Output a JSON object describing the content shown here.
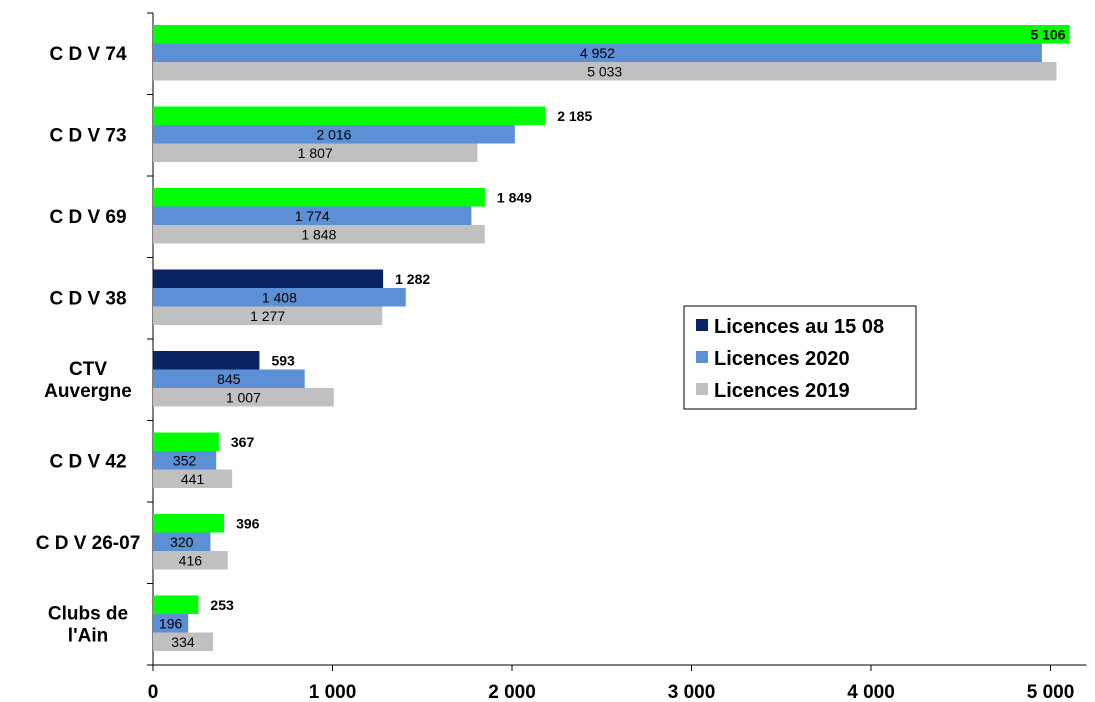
{
  "chart_data": {
    "type": "bar",
    "orientation": "horizontal",
    "categories": [
      [
        "C D V 74"
      ],
      [
        "C D V 73"
      ],
      [
        "C D V 69"
      ],
      [
        "C D V 38"
      ],
      [
        "CTV",
        "Auvergne"
      ],
      [
        "C D V 42"
      ],
      [
        "C D V 26-07"
      ],
      [
        "Clubs de",
        "l'Ain"
      ]
    ],
    "series": [
      {
        "name": "Licences au 15 08",
        "color": "#0a2463",
        "bar_colors": [
          "#00ff00",
          "#00ff00",
          "#00ff00",
          "#0a2463",
          "#0a2463",
          "#00ff00",
          "#00ff00",
          "#00ff00"
        ],
        "values": [
          5106,
          2185,
          1849,
          1282,
          593,
          367,
          396,
          253
        ],
        "labels": [
          "5 106",
          "2 185",
          "1 849",
          "1 282",
          "593",
          "367",
          "396",
          "253"
        ]
      },
      {
        "name": "Licences 2020",
        "color": "#5b8fd6",
        "values": [
          4952,
          2016,
          1774,
          1408,
          845,
          352,
          320,
          196
        ],
        "labels": [
          "4 952",
          "2 016",
          "1 774",
          "1 408",
          "845",
          "352",
          "320",
          "196"
        ]
      },
      {
        "name": "Licences 2019",
        "color": "#c0c0c0",
        "values": [
          5033,
          1807,
          1848,
          1277,
          1007,
          441,
          416,
          334
        ],
        "labels": [
          "5 033",
          "1 807",
          "1 848",
          "1 277",
          "1 007",
          "441",
          "416",
          "334"
        ]
      }
    ],
    "x_ticks": [
      0,
      1000,
      2000,
      3000,
      4000,
      5000
    ],
    "x_tick_labels": [
      "0",
      "1 000",
      "2 000",
      "3 000",
      "4 000",
      "5 000"
    ],
    "xlim": [
      0,
      5200
    ],
    "grid": false,
    "legend_position": "right-center"
  }
}
